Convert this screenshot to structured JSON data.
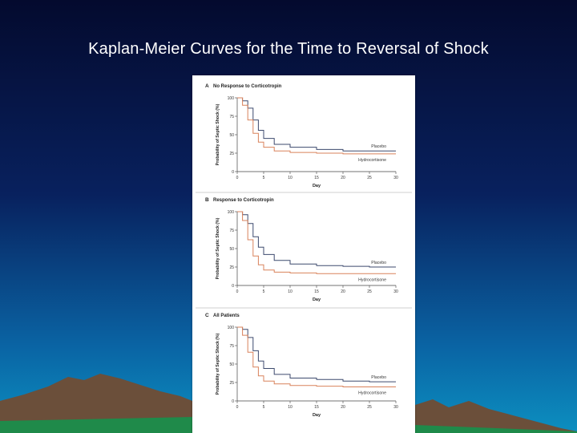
{
  "slide": {
    "title": "Kaplan-Meier Curves for the Time to Reversal of Shock",
    "colors": {
      "sky_top": "#040a2e",
      "sky_bottom": "#0c8fc0",
      "mountain": "#6b4f3a",
      "grass": "#1f8a4a"
    }
  },
  "chart_data": [
    {
      "type": "line",
      "panel": "A",
      "title": "No Response to Corticotropin",
      "xlabel": "Day",
      "ylabel": "Probability of Septic Shock (%)",
      "xlim": [
        0,
        30
      ],
      "ylim": [
        0,
        100
      ],
      "xticks": [
        0,
        5,
        10,
        15,
        20,
        25,
        30
      ],
      "yticks": [
        0,
        25,
        50,
        75,
        100
      ],
      "series": [
        {
          "name": "Placebo",
          "color": "#3d4a6e",
          "x": [
            0,
            1,
            2,
            3,
            4,
            5,
            7,
            10,
            15,
            20,
            25,
            30
          ],
          "y": [
            100,
            96,
            86,
            70,
            56,
            45,
            37,
            33,
            30,
            28,
            28,
            28
          ]
        },
        {
          "name": "Hydrocortisone",
          "color": "#d9825b",
          "x": [
            0,
            1,
            2,
            3,
            4,
            5,
            7,
            10,
            15,
            20,
            25,
            30
          ],
          "y": [
            100,
            90,
            70,
            52,
            40,
            33,
            28,
            26,
            25,
            24,
            24,
            24
          ]
        }
      ]
    },
    {
      "type": "line",
      "panel": "B",
      "title": "Response to Corticotropin",
      "xlabel": "Day",
      "ylabel": "Probability of Septic Shock (%)",
      "xlim": [
        0,
        30
      ],
      "ylim": [
        0,
        100
      ],
      "xticks": [
        0,
        5,
        10,
        15,
        20,
        25,
        30
      ],
      "yticks": [
        0,
        25,
        50,
        75,
        100
      ],
      "series": [
        {
          "name": "Placebo",
          "color": "#3d4a6e",
          "x": [
            0,
            1,
            2,
            3,
            4,
            5,
            7,
            10,
            15,
            20,
            25,
            30
          ],
          "y": [
            100,
            96,
            84,
            66,
            52,
            42,
            34,
            29,
            27,
            26,
            25,
            25
          ]
        },
        {
          "name": "Hydrocortisone",
          "color": "#d9825b",
          "x": [
            0,
            1,
            2,
            3,
            4,
            5,
            7,
            10,
            15,
            20,
            25,
            30
          ],
          "y": [
            100,
            88,
            62,
            40,
            28,
            21,
            18,
            17,
            16,
            16,
            16,
            16
          ]
        }
      ]
    },
    {
      "type": "line",
      "panel": "C",
      "title": "All Patients",
      "xlabel": "Day",
      "ylabel": "Probability of Septic Shock (%)",
      "xlim": [
        0,
        30
      ],
      "ylim": [
        0,
        100
      ],
      "xticks": [
        0,
        5,
        10,
        15,
        20,
        25,
        30
      ],
      "yticks": [
        0,
        25,
        50,
        75,
        100
      ],
      "series": [
        {
          "name": "Placebo",
          "color": "#3d4a6e",
          "x": [
            0,
            1,
            2,
            3,
            4,
            5,
            7,
            10,
            15,
            20,
            25,
            30
          ],
          "y": [
            100,
            97,
            86,
            68,
            54,
            44,
            36,
            31,
            29,
            27,
            26,
            26
          ]
        },
        {
          "name": "Hydrocortisone",
          "color": "#d9825b",
          "x": [
            0,
            1,
            2,
            3,
            4,
            5,
            7,
            10,
            15,
            20,
            25,
            30
          ],
          "y": [
            100,
            89,
            66,
            46,
            34,
            27,
            23,
            21,
            20,
            19,
            19,
            19
          ]
        }
      ]
    }
  ]
}
